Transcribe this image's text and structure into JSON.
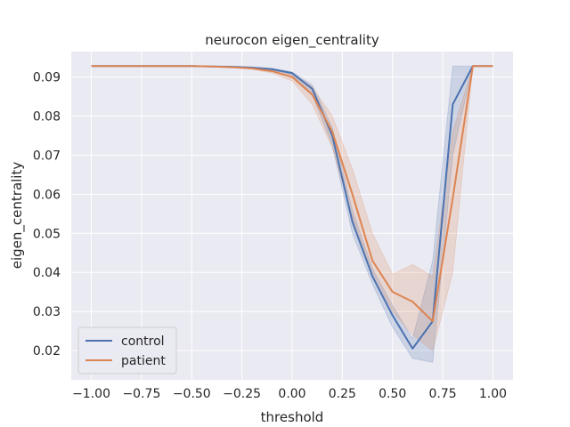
{
  "chart_data": {
    "type": "line",
    "title": "neurocon eigen_centrality",
    "xlabel": "threshold",
    "ylabel": "eigen_centrality",
    "xlim": [
      -1.1,
      1.1
    ],
    "ylim": [
      0.0125,
      0.0965
    ],
    "x_ticks": [
      -1.0,
      -0.75,
      -0.5,
      -0.25,
      0.0,
      0.25,
      0.5,
      0.75,
      1.0
    ],
    "x_tick_labels": [
      "−1.00",
      "−0.75",
      "−0.50",
      "−0.25",
      "0.00",
      "0.25",
      "0.50",
      "0.75",
      "1.00"
    ],
    "y_ticks": [
      0.02,
      0.03,
      0.04,
      0.05,
      0.06,
      0.07,
      0.08,
      0.09
    ],
    "y_tick_labels": [
      "0.02",
      "0.03",
      "0.04",
      "0.05",
      "0.06",
      "0.07",
      "0.08",
      "0.09"
    ],
    "grid": true,
    "legend_position": "bottom-left",
    "x": [
      -1.0,
      -0.9,
      -0.8,
      -0.7,
      -0.6,
      -0.5,
      -0.4,
      -0.3,
      -0.2,
      -0.1,
      0.0,
      0.1,
      0.2,
      0.3,
      0.4,
      0.5,
      0.6,
      0.7,
      0.8,
      0.9,
      1.0
    ],
    "series": [
      {
        "name": "control",
        "color": "#4c72b0",
        "values": [
          0.0928,
          0.0928,
          0.0928,
          0.0928,
          0.0928,
          0.0928,
          0.0927,
          0.0926,
          0.0924,
          0.092,
          0.091,
          0.087,
          0.075,
          0.053,
          0.039,
          0.029,
          0.0205,
          0.0275,
          0.083,
          0.0928,
          0.0928
        ],
        "ci_lower": [
          0.0928,
          0.0928,
          0.0928,
          0.0928,
          0.0928,
          0.0928,
          0.0927,
          0.0926,
          0.0923,
          0.0918,
          0.0905,
          0.0855,
          0.0725,
          0.05,
          0.037,
          0.026,
          0.018,
          0.017,
          0.07,
          0.0928,
          0.0928
        ],
        "ci_upper": [
          0.0928,
          0.0928,
          0.0928,
          0.0928,
          0.0928,
          0.0928,
          0.0928,
          0.0927,
          0.0925,
          0.0922,
          0.0913,
          0.088,
          0.077,
          0.056,
          0.041,
          0.0315,
          0.023,
          0.043,
          0.0928,
          0.0928,
          0.0928
        ]
      },
      {
        "name": "patient",
        "color": "#dd8452",
        "values": [
          0.0928,
          0.0928,
          0.0928,
          0.0928,
          0.0928,
          0.0928,
          0.0927,
          0.0925,
          0.0922,
          0.0915,
          0.09,
          0.0855,
          0.076,
          0.06,
          0.043,
          0.035,
          0.0325,
          0.0275,
          0.059,
          0.0928,
          0.0928
        ],
        "ci_lower": [
          0.0928,
          0.0928,
          0.0928,
          0.0928,
          0.0928,
          0.0928,
          0.0926,
          0.0924,
          0.092,
          0.091,
          0.089,
          0.083,
          0.072,
          0.054,
          0.04,
          0.03,
          0.024,
          0.02,
          0.04,
          0.0928,
          0.0928
        ],
        "ci_upper": [
          0.0928,
          0.0928,
          0.0928,
          0.0928,
          0.0928,
          0.0928,
          0.0928,
          0.0926,
          0.0924,
          0.092,
          0.091,
          0.0875,
          0.08,
          0.0665,
          0.05,
          0.0395,
          0.042,
          0.039,
          0.076,
          0.0928,
          0.0928
        ]
      }
    ]
  }
}
